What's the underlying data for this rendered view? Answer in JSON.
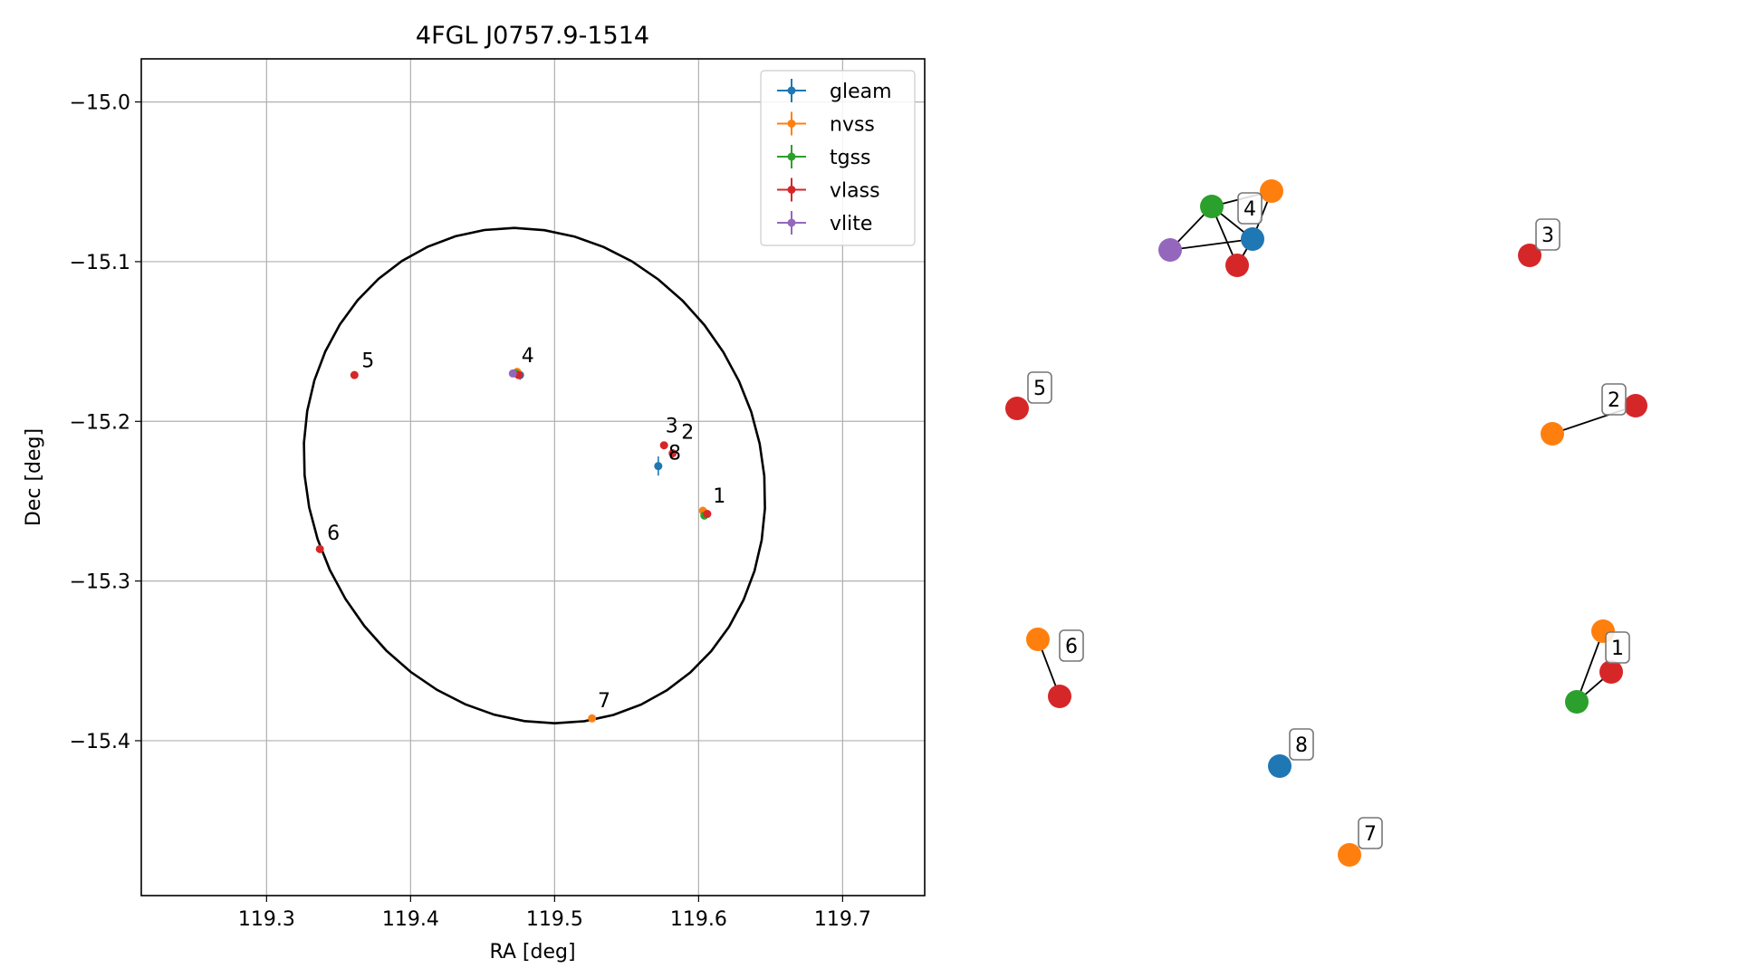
{
  "chart_data": [
    {
      "type": "scatter",
      "title": "4FGL J0757.9-1514",
      "xlabel": "RA [deg]",
      "ylabel": "Dec [deg]",
      "xlim": [
        119.213,
        119.757
      ],
      "ylim": [
        -15.497,
        -14.973
      ],
      "xticks": [
        119.3,
        119.4,
        119.5,
        119.6,
        119.7
      ],
      "xtick_labels": [
        "119.3",
        "119.4",
        "119.5",
        "119.6",
        "119.7"
      ],
      "yticks": [
        -15.0,
        -15.1,
        -15.2,
        -15.3,
        -15.4
      ],
      "ytick_labels": [
        "−15.0",
        "−15.1",
        "−15.2",
        "−15.3",
        "−15.4"
      ],
      "grid": true,
      "legend_position": "top-right",
      "series": [
        {
          "name": "gleam",
          "color": "#1f77b4",
          "points": [
            {
              "x": 119.572,
              "y": -15.228,
              "xerr": 0.002,
              "yerr": 0.006
            },
            {
              "x": 119.476,
              "y": -15.171,
              "xerr": 0.002,
              "yerr": 0.003
            }
          ]
        },
        {
          "name": "nvss",
          "color": "#ff7f0e",
          "points": [
            {
              "x": 119.603,
              "y": -15.256,
              "xerr": 0.001,
              "yerr": 0.001
            },
            {
              "x": 119.474,
              "y": -15.169,
              "xerr": 0.001,
              "yerr": 0.001
            },
            {
              "x": 119.526,
              "y": -15.386,
              "xerr": 0.001,
              "yerr": 0.001
            }
          ]
        },
        {
          "name": "tgss",
          "color": "#2ca02c",
          "points": [
            {
              "x": 119.604,
              "y": -15.259,
              "xerr": 0.001,
              "yerr": 0.001
            },
            {
              "x": 119.473,
              "y": -15.17,
              "xerr": 0.001,
              "yerr": 0.001
            }
          ]
        },
        {
          "name": "vlass",
          "color": "#d62728",
          "points": [
            {
              "x": 119.606,
              "y": -15.258
            },
            {
              "x": 119.582,
              "y": -15.22
            },
            {
              "x": 119.576,
              "y": -15.215
            },
            {
              "x": 119.475,
              "y": -15.171
            },
            {
              "x": 119.361,
              "y": -15.171
            },
            {
              "x": 119.337,
              "y": -15.28
            }
          ]
        },
        {
          "name": "vlite",
          "color": "#9467bd",
          "points": [
            {
              "x": 119.471,
              "y": -15.17,
              "xerr": 0.002,
              "yerr": 0.002
            }
          ]
        }
      ],
      "ellipse": {
        "center_ra": 119.486,
        "center_dec": -15.234,
        "semi_major_deg": 0.165,
        "semi_minor_deg": 0.15,
        "angle_deg": -35,
        "color": "#000000"
      },
      "annotations": [
        {
          "text": "1",
          "x": 119.61,
          "y": -15.251
        },
        {
          "text": "2",
          "x": 119.588,
          "y": -15.211
        },
        {
          "text": "3",
          "x": 119.577,
          "y": -15.207
        },
        {
          "text": "8",
          "x": 119.579,
          "y": -15.224
        },
        {
          "text": "4",
          "x": 119.477,
          "y": -15.163
        },
        {
          "text": "5",
          "x": 119.366,
          "y": -15.166
        },
        {
          "text": "6",
          "x": 119.342,
          "y": -15.274
        },
        {
          "text": "7",
          "x": 119.53,
          "y": -15.379
        }
      ]
    },
    {
      "type": "network",
      "nodes": [
        {
          "group": "1",
          "color": "#ff7f0e"
        },
        {
          "group": "1",
          "color": "#d62728"
        },
        {
          "group": "1",
          "color": "#2ca02c"
        },
        {
          "group": "2",
          "color": "#ff7f0e"
        },
        {
          "group": "2",
          "color": "#d62728"
        },
        {
          "group": "3",
          "color": "#d62728"
        },
        {
          "group": "4",
          "color": "#ff7f0e"
        },
        {
          "group": "4",
          "color": "#2ca02c"
        },
        {
          "group": "4",
          "color": "#1f77b4"
        },
        {
          "group": "4",
          "color": "#9467bd"
        },
        {
          "group": "4",
          "color": "#d62728"
        },
        {
          "group": "5",
          "color": "#d62728"
        },
        {
          "group": "6",
          "color": "#ff7f0e"
        },
        {
          "group": "6",
          "color": "#d62728"
        },
        {
          "group": "7",
          "color": "#ff7f0e"
        },
        {
          "group": "8",
          "color": "#1f77b4"
        }
      ],
      "edges": [
        [
          0,
          2
        ],
        [
          1,
          2
        ],
        [
          3,
          4
        ],
        [
          6,
          7
        ],
        [
          6,
          8
        ],
        [
          7,
          8
        ],
        [
          7,
          9
        ],
        [
          7,
          10
        ],
        [
          8,
          9
        ],
        [
          8,
          10
        ],
        [
          12,
          13
        ]
      ],
      "group_labels": [
        "1",
        "2",
        "3",
        "4",
        "5",
        "6",
        "7",
        "8"
      ]
    }
  ]
}
